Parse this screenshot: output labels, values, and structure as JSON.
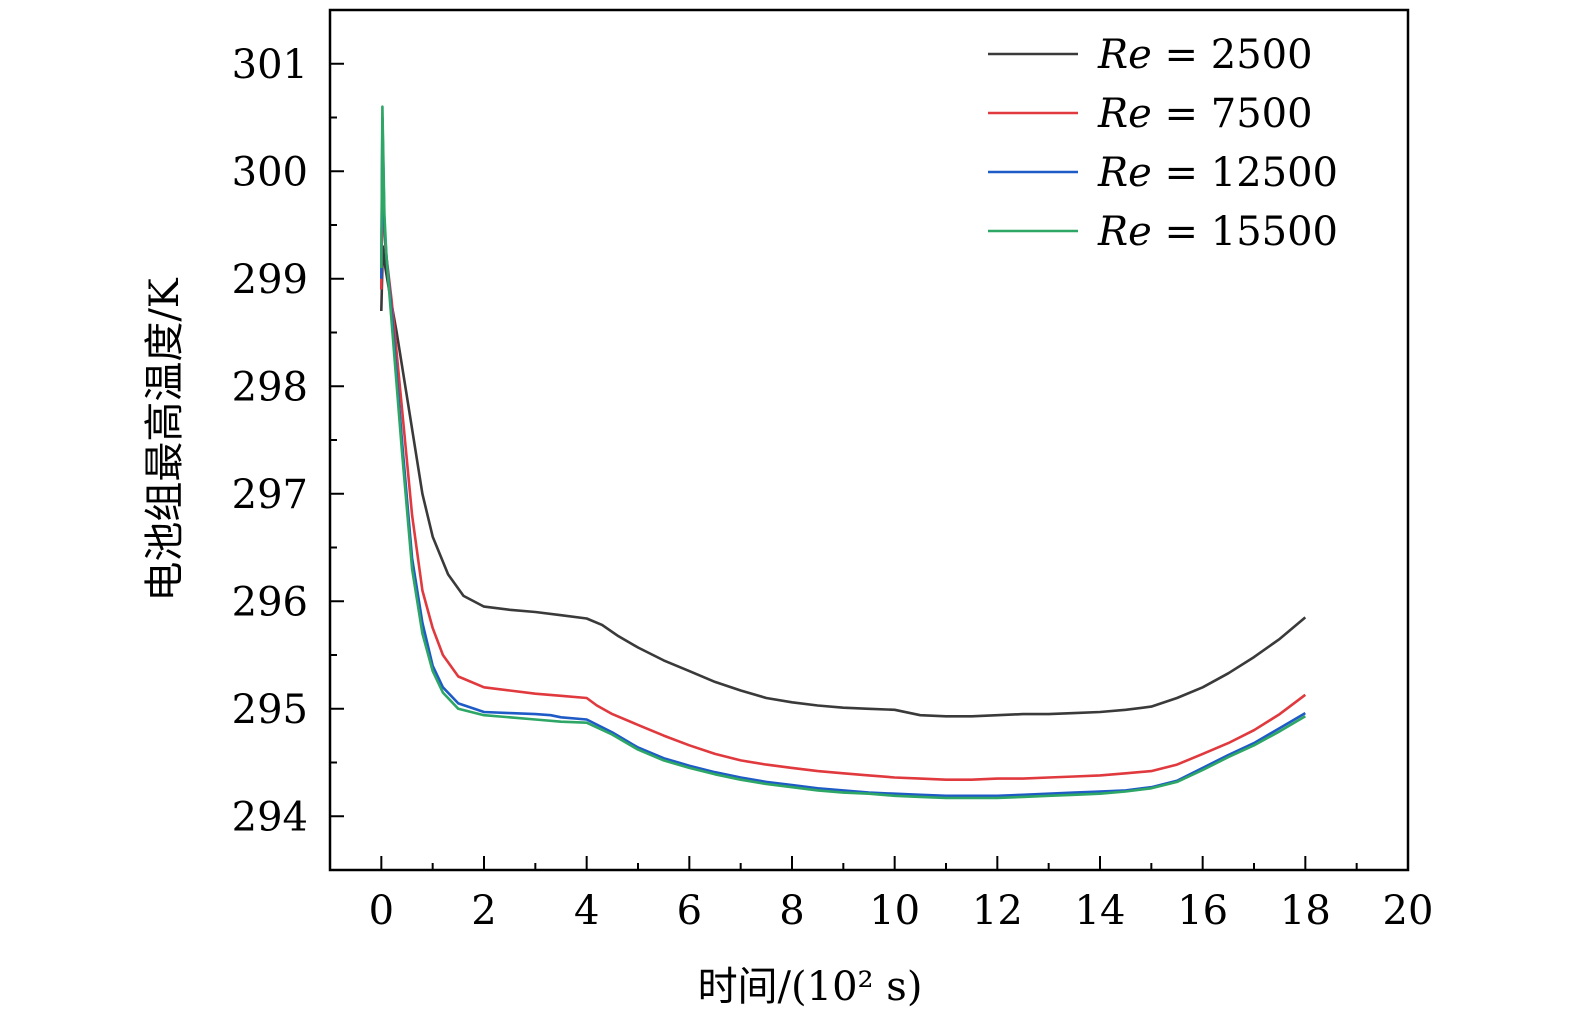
{
  "chart_data": {
    "type": "line",
    "xlabel": "时间/(10² s)",
    "ylabel": "电池组最高温度/K",
    "xlim": [
      -1,
      20
    ],
    "ylim": [
      293.5,
      301.5
    ],
    "xticks": [
      0,
      2,
      4,
      6,
      8,
      10,
      12,
      14,
      16,
      18,
      20
    ],
    "yticks": [
      294,
      295,
      296,
      297,
      298,
      299,
      300,
      301
    ],
    "legend_position": "top-right",
    "grid": false,
    "series": [
      {
        "name": "Re = 2500",
        "name_var": "Re",
        "name_rest": " = 2500",
        "color": "#3a3a3a",
        "x": [
          0,
          0.03,
          0.08,
          0.15,
          0.3,
          0.5,
          0.8,
          1.0,
          1.3,
          1.6,
          2.0,
          2.5,
          3.0,
          3.5,
          4.0,
          4.3,
          4.6,
          5.0,
          5.5,
          6.0,
          6.5,
          7.0,
          7.5,
          8.0,
          8.5,
          9.0,
          9.5,
          10.0,
          10.5,
          11.0,
          11.5,
          12.0,
          12.5,
          13.0,
          13.5,
          14.0,
          14.5,
          15.0,
          15.5,
          16.0,
          16.5,
          17.0,
          17.5,
          18.0
        ],
        "y": [
          298.7,
          299.3,
          299.1,
          298.9,
          298.5,
          297.9,
          297.0,
          296.6,
          296.25,
          296.05,
          295.95,
          295.92,
          295.9,
          295.87,
          295.84,
          295.78,
          295.68,
          295.57,
          295.45,
          295.35,
          295.25,
          295.17,
          295.1,
          295.06,
          295.03,
          295.01,
          295.0,
          294.99,
          294.94,
          294.93,
          294.93,
          294.94,
          294.95,
          294.95,
          294.96,
          294.97,
          294.99,
          295.02,
          295.1,
          295.2,
          295.33,
          295.48,
          295.65,
          295.85
        ]
      },
      {
        "name": "Re = 7500",
        "name_var": "Re",
        "name_rest": " = 7500",
        "color": "#e0393e",
        "x": [
          0,
          0.02,
          0.06,
          0.1,
          0.2,
          0.4,
          0.6,
          0.8,
          1.0,
          1.2,
          1.5,
          2.0,
          2.5,
          3.0,
          3.5,
          4.0,
          4.2,
          4.5,
          5.0,
          5.5,
          6.0,
          6.5,
          7.0,
          7.5,
          8.0,
          8.5,
          9.0,
          9.5,
          10.0,
          10.5,
          11.0,
          11.5,
          12.0,
          12.5,
          13.0,
          13.5,
          14.0,
          14.5,
          15.0,
          15.5,
          16.0,
          16.5,
          17.0,
          17.5,
          18.0
        ],
        "y": [
          298.9,
          300.3,
          299.4,
          299.2,
          298.8,
          297.8,
          296.8,
          296.1,
          295.75,
          295.5,
          295.3,
          295.2,
          295.17,
          295.14,
          295.12,
          295.1,
          295.03,
          294.95,
          294.85,
          294.75,
          294.66,
          294.58,
          294.52,
          294.48,
          294.45,
          294.42,
          294.4,
          294.38,
          294.36,
          294.35,
          294.34,
          294.34,
          294.35,
          294.35,
          294.36,
          294.37,
          294.38,
          294.4,
          294.42,
          294.48,
          294.58,
          294.68,
          294.8,
          294.95,
          295.13
        ]
      },
      {
        "name": "Re = 12500",
        "name_var": "Re",
        "name_rest": " = 12500",
        "color": "#1f5bc6",
        "x": [
          0,
          0.02,
          0.06,
          0.1,
          0.2,
          0.4,
          0.6,
          0.8,
          1.0,
          1.2,
          1.5,
          2.0,
          2.5,
          3.0,
          3.3,
          3.5,
          4.0,
          4.5,
          5.0,
          5.5,
          6.0,
          6.5,
          7.0,
          7.5,
          8.0,
          8.5,
          9.0,
          9.5,
          10.0,
          10.5,
          11.0,
          11.5,
          12.0,
          12.5,
          13.0,
          13.5,
          14.0,
          14.5,
          15.0,
          15.5,
          16.0,
          16.5,
          17.0,
          17.5,
          18.0
        ],
        "y": [
          299.0,
          300.5,
          299.5,
          299.2,
          298.7,
          297.5,
          296.4,
          295.8,
          295.4,
          295.2,
          295.05,
          294.97,
          294.96,
          294.95,
          294.94,
          294.92,
          294.9,
          294.78,
          294.64,
          294.54,
          294.47,
          294.41,
          294.36,
          294.32,
          294.29,
          294.26,
          294.24,
          294.22,
          294.21,
          294.2,
          294.19,
          294.19,
          294.19,
          294.2,
          294.21,
          294.22,
          294.23,
          294.24,
          294.27,
          294.33,
          294.45,
          294.57,
          294.68,
          294.82,
          294.96
        ]
      },
      {
        "name": "Re = 15500",
        "name_var": "Re",
        "name_rest": " = 15500",
        "color": "#2ea665",
        "x": [
          0,
          0.02,
          0.06,
          0.1,
          0.2,
          0.4,
          0.6,
          0.8,
          1.0,
          1.2,
          1.5,
          2.0,
          2.5,
          3.0,
          3.5,
          4.0,
          4.5,
          5.0,
          5.5,
          6.0,
          6.5,
          7.0,
          7.5,
          8.0,
          8.5,
          9.0,
          9.5,
          10.0,
          10.5,
          11.0,
          11.5,
          12.0,
          12.5,
          13.0,
          13.5,
          14.0,
          14.5,
          15.0,
          15.5,
          16.0,
          16.5,
          17.0,
          17.5,
          18.0
        ],
        "y": [
          299.1,
          300.6,
          299.6,
          299.2,
          298.6,
          297.4,
          296.3,
          295.7,
          295.35,
          295.15,
          295.0,
          294.94,
          294.92,
          294.9,
          294.88,
          294.87,
          294.76,
          294.62,
          294.52,
          294.45,
          294.39,
          294.34,
          294.3,
          294.27,
          294.24,
          294.22,
          294.21,
          294.19,
          294.18,
          294.17,
          294.17,
          294.17,
          294.18,
          294.19,
          294.2,
          294.21,
          294.23,
          294.26,
          294.32,
          294.43,
          294.55,
          294.66,
          294.79,
          294.93
        ]
      }
    ]
  }
}
